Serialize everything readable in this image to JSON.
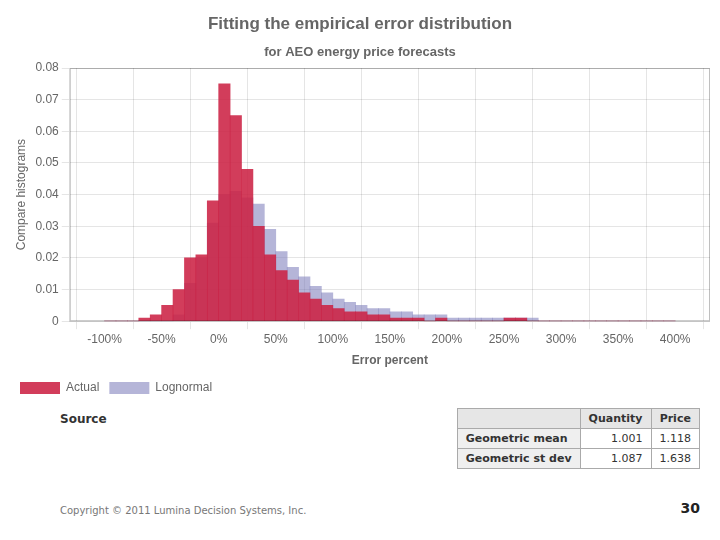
{
  "chart_data": {
    "type": "histogram",
    "title": "Fitting the empirical error distribution",
    "subtitle": "for AEO energy price forecasts",
    "xlabel": "Error percent",
    "ylabel": "Compare histograms",
    "bins": [
      -1.0,
      -0.9,
      -0.8,
      -0.7,
      -0.6,
      -0.5,
      -0.4,
      -0.3,
      -0.2,
      -0.1,
      0.0,
      0.1,
      0.2,
      0.3,
      0.4,
      0.5,
      0.6,
      0.7,
      0.8,
      0.9,
      1.0,
      1.1,
      1.2,
      1.3,
      1.4,
      1.5,
      1.6,
      1.7,
      1.8,
      1.9,
      2.0,
      2.1,
      2.2,
      2.3,
      2.4,
      2.5,
      2.6,
      2.7,
      2.8,
      2.9,
      3.0,
      3.1,
      3.2,
      3.3,
      3.4,
      3.5,
      3.6,
      3.7,
      3.8,
      3.9,
      4.0
    ],
    "series": [
      {
        "name": "Actual",
        "color": "#CC2244",
        "values": [
          0.0,
          0.0,
          0.0,
          0.001,
          0.002,
          0.005,
          0.01,
          0.02,
          0.021,
          0.038,
          0.075,
          0.065,
          0.048,
          0.03,
          0.021,
          0.016,
          0.013,
          0.009,
          0.007,
          0.005,
          0.004,
          0.003,
          0.003,
          0.002,
          0.002,
          0.001,
          0.001,
          0.001,
          0.0,
          0.001,
          0.0,
          0.0,
          0.0,
          0.0,
          0.0,
          0.001,
          0.001,
          0.0,
          0.0,
          0.0,
          0.0,
          0.0,
          0.0,
          0.0,
          0.0,
          0.0,
          0.0,
          0.0,
          0.0,
          0.0
        ]
      },
      {
        "name": "Lognormal",
        "color": "#7878B8",
        "values": [
          0.0,
          0.0,
          0.0,
          0.0,
          0.0,
          0.0,
          0.002,
          0.012,
          0.02,
          0.031,
          0.04,
          0.041,
          0.039,
          0.037,
          0.029,
          0.022,
          0.017,
          0.014,
          0.011,
          0.009,
          0.007,
          0.006,
          0.005,
          0.004,
          0.004,
          0.003,
          0.003,
          0.002,
          0.002,
          0.002,
          0.001,
          0.001,
          0.001,
          0.001,
          0.001,
          0.001,
          0.001,
          0.001,
          0.0,
          0.0,
          0.0,
          0.0,
          0.0,
          0.0,
          0.0,
          0.0,
          0.0,
          0.0,
          0.0,
          0.0
        ]
      }
    ],
    "xlim": [
      -1.05,
      4.05
    ],
    "xticks": [
      {
        "value": -1.0,
        "label": "-100%"
      },
      {
        "value": -0.5,
        "label": "-50%"
      },
      {
        "value": 0.0,
        "label": "0%"
      },
      {
        "value": 0.5,
        "label": "50%"
      },
      {
        "value": 1.0,
        "label": "100%"
      },
      {
        "value": 1.5,
        "label": "150%"
      },
      {
        "value": 2.0,
        "label": "200%"
      },
      {
        "value": 2.5,
        "label": "250%"
      },
      {
        "value": 3.0,
        "label": "300%"
      },
      {
        "value": 3.5,
        "label": "350%"
      },
      {
        "value": 4.0,
        "label": "400%"
      }
    ],
    "ylim": [
      0,
      0.08
    ],
    "yticks": [
      0,
      0.01,
      0.02,
      0.03,
      0.04,
      0.05,
      0.06,
      0.07,
      0.08
    ],
    "grid": true,
    "legend": "bottom",
    "annotations": [
      "Source",
      "Copyright © 2011 Lumina Decision Systems, Inc.",
      "30"
    ],
    "table": {
      "columns": [
        "Quantity",
        "Price"
      ],
      "rows": [
        {
          "label": "Geometric mean",
          "values": [
            1.001,
            1.118
          ]
        },
        {
          "label": "Geometric st dev",
          "values": [
            1.087,
            1.638
          ]
        }
      ]
    }
  }
}
